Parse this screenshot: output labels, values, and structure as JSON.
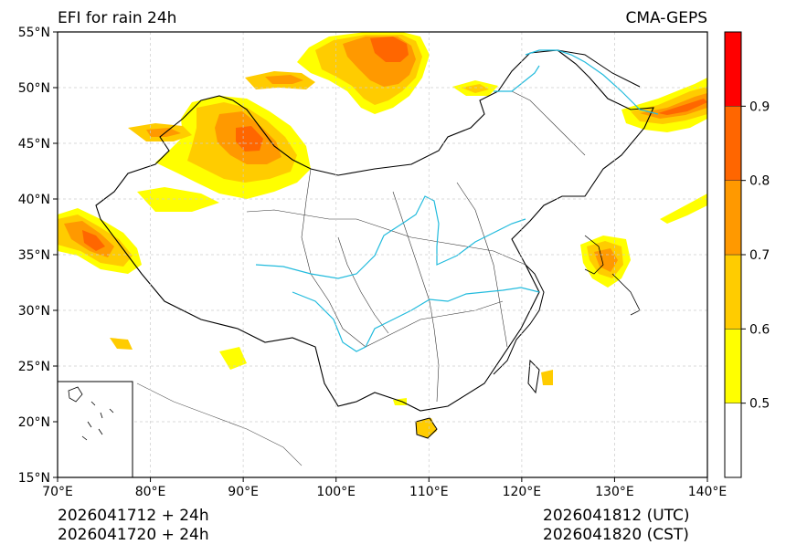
{
  "title": "EFI for rain 24h",
  "model": "CMA-GEPS",
  "footer": {
    "init_utc": "2026041712 + 24h",
    "init_cst": "2026041720 + 24h",
    "valid_utc": "2026041812 (UTC)",
    "valid_cst": "2026041820 (CST)"
  },
  "map": {
    "lon_range": [
      70,
      140
    ],
    "lat_range": [
      15,
      55
    ],
    "lon_ticks": [
      "70°E",
      "80°E",
      "90°E",
      "100°E",
      "110°E",
      "120°E",
      "130°E",
      "140°E"
    ],
    "lat_ticks": [
      "15°N",
      "20°N",
      "25°N",
      "30°N",
      "35°N",
      "40°N",
      "45°N",
      "50°N",
      "55°N"
    ],
    "grid": true
  },
  "colorbar": {
    "levels": [
      "0.5",
      "0.6",
      "0.7",
      "0.8",
      "0.9"
    ],
    "colors": [
      "#ffffff",
      "#ffff00",
      "#ffcc00",
      "#ff9900",
      "#ff6600",
      "#ff0000"
    ]
  }
}
